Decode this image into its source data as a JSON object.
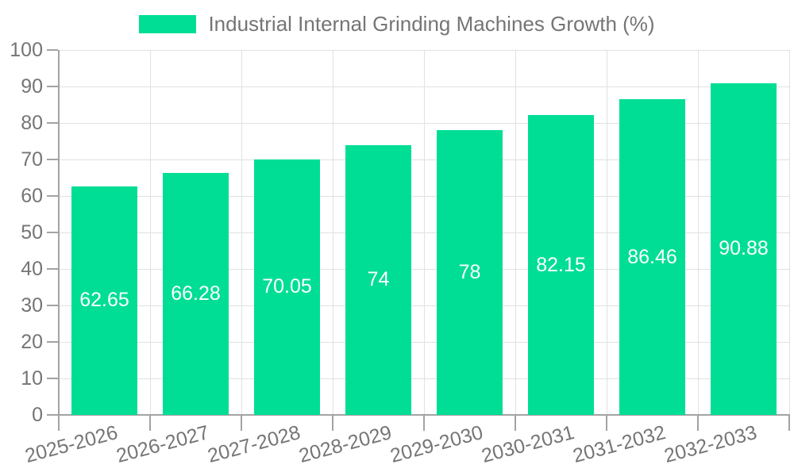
{
  "chart_data": {
    "type": "bar",
    "title": "Industrial Internal Grinding Machines Growth (%)",
    "categories": [
      "2025-2026",
      "2026-2027",
      "2027-2028",
      "2028-2029",
      "2029-2030",
      "2030-2031",
      "2031-2032",
      "2032-2033"
    ],
    "values": [
      62.65,
      66.28,
      70.05,
      74,
      78,
      82.15,
      86.46,
      90.88
    ],
    "value_labels": [
      "62.65",
      "66.28",
      "70.05",
      "74",
      "78",
      "82.15",
      "86.46",
      "90.88"
    ],
    "xlabel": "",
    "ylabel": "",
    "ylim": [
      0,
      100
    ],
    "ytick_step": 10,
    "ytick_labels": [
      "0",
      "10",
      "20",
      "30",
      "40",
      "50",
      "60",
      "70",
      "80",
      "90",
      "100"
    ],
    "grid": "on",
    "legend_position": "top",
    "colors": {
      "bar": "#00de95",
      "bar_label_text": "#ffffff",
      "axis_text": "#757575",
      "grid_line": "#e1e1e1",
      "axis_line": "#a3a3a3",
      "background": "#ffffff"
    }
  }
}
